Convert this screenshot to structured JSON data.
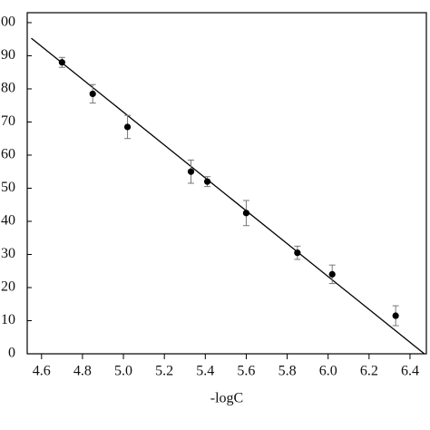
{
  "chart_data": {
    "type": "scatter",
    "x_label": "-logC",
    "x": [
      4.7,
      4.85,
      5.02,
      5.33,
      5.41,
      5.6,
      5.85,
      6.02,
      6.33
    ],
    "values": [
      88,
      78.5,
      68.5,
      55,
      52,
      42.5,
      30.5,
      24,
      11.5
    ],
    "errors": [
      1.5,
      2.8,
      3.5,
      3.5,
      1.5,
      3.8,
      2,
      2.8,
      3
    ],
    "fit": {
      "x": [
        4.55,
        6.47
      ],
      "y": [
        95.3,
        0
      ]
    },
    "color": "#000000",
    "error_color": "#777777",
    "xlim": [
      4.53,
      6.48
    ],
    "ylim": [
      0,
      103
    ],
    "xticks": [
      4.6,
      4.8,
      {
        "value": 5.0,
        "label": "5.0"
      },
      5.2,
      5.4,
      5.6,
      5.8,
      {
        "value": 6.0,
        "label": "6.0"
      },
      6.2,
      6.4
    ],
    "yticks": [
      0,
      10,
      20,
      30,
      40,
      50,
      60,
      70,
      80,
      90,
      100
    ]
  }
}
